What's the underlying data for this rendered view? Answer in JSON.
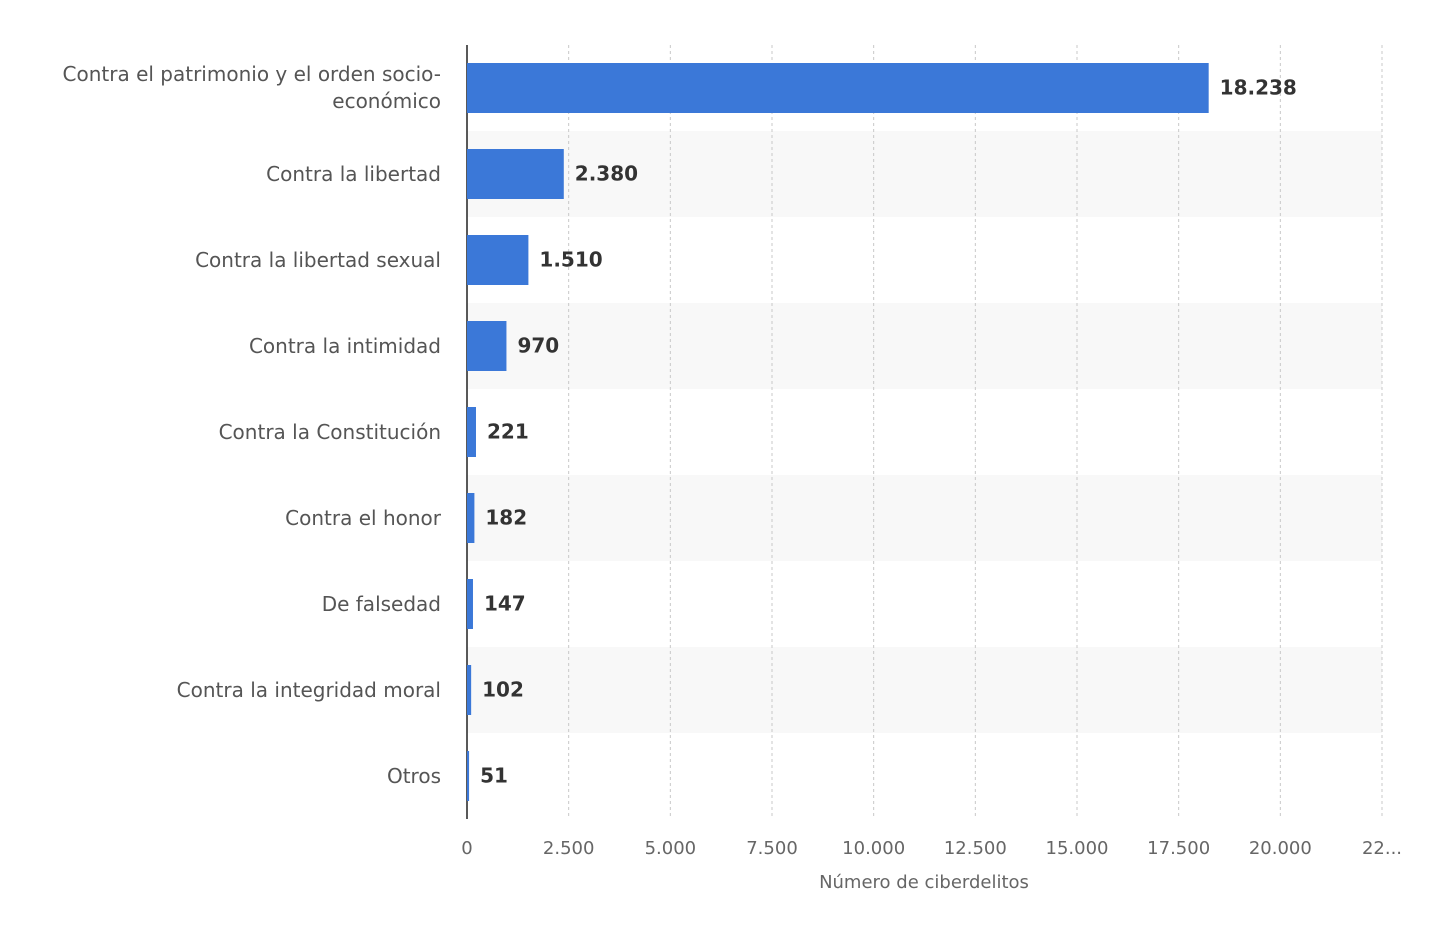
{
  "chart_data": {
    "type": "barh",
    "x_label": "Número de ciberdelitos",
    "categories": [
      "Contra el patrimonio y el orden socio-económico",
      "Contra la libertad",
      "Contra la libertad sexual",
      "Contra la intimidad",
      "Contra la Constitución",
      "Contra el honor",
      "De falsedad",
      "Contra la integridad moral",
      "Otros"
    ],
    "values": [
      18238,
      2380,
      1510,
      970,
      221,
      182,
      147,
      102,
      51
    ],
    "value_labels": [
      "18.238",
      "2.380",
      "1.510",
      "970",
      "221",
      "182",
      "147",
      "102",
      "51"
    ],
    "color": "#3b78d8",
    "xlim": [
      0,
      22500
    ],
    "xticks": [
      0,
      {
        "value": 2500,
        "label": "2.500"
      },
      {
        "value": 5000,
        "label": "5.000"
      },
      {
        "value": 7500,
        "label": "7.500"
      },
      {
        "value": 10000,
        "label": "10.000"
      },
      {
        "value": 12500,
        "label": "12.500"
      },
      {
        "value": 15000,
        "label": "15.000"
      },
      {
        "value": 17500,
        "label": "17.500"
      },
      {
        "value": 20000,
        "label": "20.000"
      },
      {
        "value": 22500,
        "label": "22..."
      }
    ],
    "grid": true
  }
}
